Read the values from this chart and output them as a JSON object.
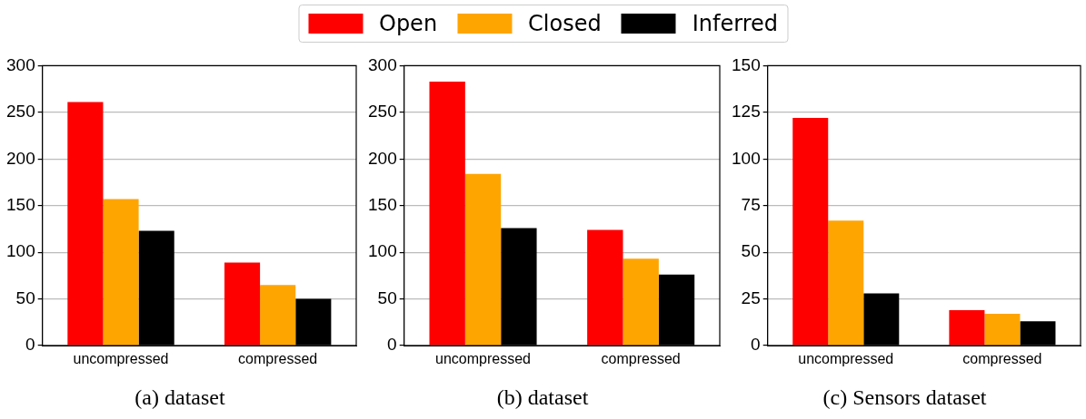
{
  "chart_data": [
    {
      "type": "bar",
      "title": "(a) dataset",
      "categories": [
        "uncompressed",
        "compressed"
      ],
      "legend": "top",
      "grid": "y",
      "ylim": [
        0,
        300
      ],
      "yticks": [
        0,
        50,
        100,
        150,
        200,
        250,
        300
      ],
      "series": [
        {
          "name": "Open",
          "color": "#ff0000",
          "values": [
            261,
            89
          ]
        },
        {
          "name": "Closed",
          "color": "#ffa500",
          "values": [
            157,
            65
          ]
        },
        {
          "name": "Inferred",
          "color": "#000000",
          "values": [
            123,
            50
          ]
        }
      ]
    },
    {
      "type": "bar",
      "title": "(b) dataset",
      "categories": [
        "uncompressed",
        "compressed"
      ],
      "grid": "y",
      "ylim": [
        0,
        300
      ],
      "yticks": [
        0,
        50,
        100,
        150,
        200,
        250,
        300
      ],
      "series": [
        {
          "color": "#ff0000",
          "values": [
            283,
            124
          ]
        },
        {
          "color": "#ffa500",
          "values": [
            184,
            93
          ]
        },
        {
          "color": "#000000",
          "values": [
            126,
            76
          ]
        }
      ]
    },
    {
      "type": "bar",
      "title": "(c) Sensors dataset",
      "categories": [
        "uncompressed",
        "compressed"
      ],
      "grid": "y",
      "ylim": [
        0,
        150
      ],
      "yticks": [
        0,
        25,
        50,
        75,
        100,
        125,
        150
      ],
      "series": [
        {
          "color": "#ff0000",
          "values": [
            122,
            19
          ]
        },
        {
          "color": "#ffa500",
          "values": [
            67,
            17
          ]
        },
        {
          "color": "#000000",
          "values": [
            28,
            13
          ]
        }
      ]
    }
  ]
}
